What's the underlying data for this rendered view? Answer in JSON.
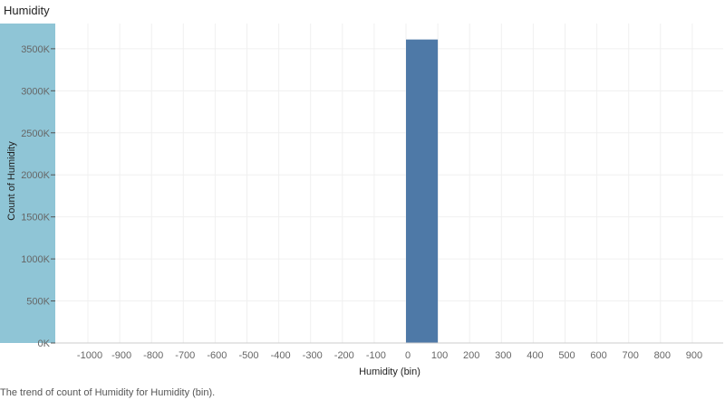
{
  "chart_data": {
    "type": "bar",
    "title": "Humidity",
    "xlabel": "Humidity (bin)",
    "ylabel": "Count of Humidity",
    "caption": "The trend of count of Humidity for Humidity (bin).",
    "x_ticks": [
      "-1000",
      "-900",
      "-800",
      "-700",
      "-600",
      "-500",
      "-400",
      "-300",
      "-200",
      "-100",
      "0",
      "100",
      "200",
      "300",
      "400",
      "500",
      "600",
      "700",
      "800",
      "900"
    ],
    "y_ticks": [
      "0K",
      "500K",
      "1000K",
      "1500K",
      "2000K",
      "2500K",
      "3000K",
      "3500K"
    ],
    "xlim": [
      -1100,
      1000
    ],
    "ylim": [
      0,
      3800000
    ],
    "bins": [
      {
        "start": 0,
        "end": 100,
        "value": 3610000
      }
    ],
    "grid": true,
    "colors": {
      "bar": "#4e79a7",
      "y_axis_band": "#8fc5d6"
    }
  }
}
